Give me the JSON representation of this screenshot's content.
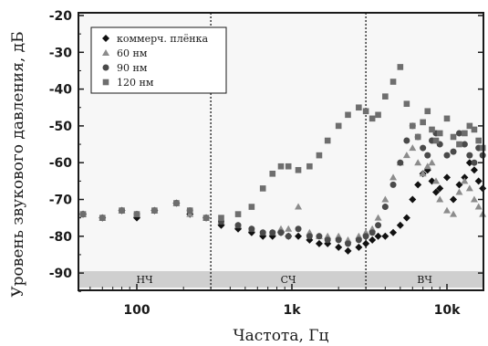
{
  "chart_data": {
    "type": "scatter",
    "title": "",
    "xlabel": "Частота, Гц",
    "ylabel": "Уровень звукового давления, дБ",
    "xscale": "log",
    "xlim": [
      40,
      20000
    ],
    "ylim": [
      -95,
      -20
    ],
    "xticks": [
      {
        "value": 100,
        "label": "100"
      },
      {
        "value": 1000,
        "label": "1k"
      },
      {
        "value": 10000,
        "label": "10k"
      }
    ],
    "yticks": [
      {
        "value": -20,
        "label": "-20"
      },
      {
        "value": -30,
        "label": "-30"
      },
      {
        "value": -40,
        "label": "-40"
      },
      {
        "value": -50,
        "label": "-50"
      },
      {
        "value": -60,
        "label": "-60"
      },
      {
        "value": -70,
        "label": "-70"
      },
      {
        "value": -80,
        "label": "-80"
      },
      {
        "value": -90,
        "label": "-90"
      }
    ],
    "grid": false,
    "legend_position": "top-left",
    "dividers": [
      300,
      3000
    ],
    "bands": [
      {
        "label": "НЧ",
        "from": 40,
        "to": 300
      },
      {
        "label": "СЧ",
        "from": 300,
        "to": 3000
      },
      {
        "label": "ВЧ",
        "from": 3000,
        "to": 20000
      }
    ],
    "series": [
      {
        "name": "коммерч. плёнка",
        "marker": "diamond",
        "color": "#111111",
        "x": [
          45,
          60,
          80,
          100,
          130,
          180,
          220,
          280,
          350,
          450,
          550,
          650,
          750,
          850,
          950,
          1100,
          1300,
          1500,
          1700,
          2000,
          2300,
          2700,
          3000,
          3300,
          3600,
          4000,
          4500,
          5000,
          5500,
          6000,
          6500,
          7000,
          7500,
          8000,
          8500,
          9000,
          10000,
          11000,
          12000,
          13000,
          14000,
          15000,
          16000,
          17000,
          18000,
          19000,
          20000
        ],
        "y": [
          -74,
          -75,
          -73,
          -75,
          -73,
          -71,
          -74,
          -75,
          -77,
          -78,
          -79,
          -80,
          -80,
          -79,
          -80,
          -80,
          -81,
          -82,
          -82,
          -83,
          -84,
          -83,
          -82,
          -81,
          -80,
          -80,
          -79,
          -77,
          -75,
          -70,
          -66,
          -63,
          -62,
          -65,
          -68,
          -67,
          -64,
          -70,
          -66,
          -64,
          -60,
          -62,
          -65,
          -67,
          -64,
          -66,
          -62
        ]
      },
      {
        "name": "60 нм",
        "marker": "triangle",
        "color": "#8c8c8c",
        "x": [
          45,
          60,
          80,
          100,
          130,
          180,
          220,
          280,
          350,
          450,
          550,
          650,
          750,
          850,
          950,
          1100,
          1300,
          1500,
          1700,
          2000,
          2300,
          2700,
          3000,
          3300,
          3600,
          4000,
          4500,
          5000,
          5500,
          6000,
          6500,
          7000,
          7500,
          8000,
          8500,
          9000,
          10000,
          11000,
          12000,
          13000,
          14000,
          15000,
          16000,
          17000,
          18000,
          19000,
          20000
        ],
        "y": [
          -74,
          -75,
          -73,
          -74,
          -73,
          -71,
          -74,
          -75,
          -76,
          -77,
          -78,
          -79,
          -79,
          -78,
          -78,
          -72,
          -79,
          -80,
          -80,
          -80,
          -81,
          -80,
          -79,
          -78,
          -75,
          -70,
          -64,
          -60,
          -58,
          -56,
          -60,
          -63,
          -61,
          -60,
          -65,
          -70,
          -73,
          -74,
          -68,
          -65,
          -67,
          -70,
          -72,
          -74,
          -70,
          -72,
          -68
        ]
      },
      {
        "name": "90 нм",
        "marker": "circle",
        "color": "#4a4a4a",
        "x": [
          45,
          60,
          80,
          100,
          130,
          180,
          220,
          280,
          350,
          450,
          550,
          650,
          750,
          850,
          950,
          1100,
          1300,
          1500,
          1700,
          2000,
          2300,
          2700,
          3000,
          3300,
          3600,
          4000,
          4500,
          5000,
          5500,
          6000,
          6500,
          7000,
          7500,
          8000,
          8500,
          9000,
          10000,
          11000,
          12000,
          13000,
          14000,
          15000,
          16000,
          17000,
          18000,
          19000,
          20000
        ],
        "y": [
          -74,
          -75,
          -73,
          -74,
          -73,
          -71,
          -73,
          -75,
          -76,
          -77,
          -78,
          -79,
          -79,
          -79,
          -80,
          -78,
          -80,
          -80,
          -81,
          -81,
          -82,
          -81,
          -80,
          -79,
          -77,
          -72,
          -66,
          -60,
          -54,
          -50,
          -53,
          -56,
          -58,
          -54,
          -52,
          -55,
          -58,
          -57,
          -52,
          -55,
          -58,
          -60,
          -56,
          -58,
          -61,
          -59,
          -57
        ]
      },
      {
        "name": "120 нм",
        "marker": "square",
        "color": "#6e6e6e",
        "x": [
          45,
          60,
          80,
          100,
          130,
          180,
          220,
          280,
          350,
          450,
          550,
          650,
          750,
          850,
          950,
          1100,
          1300,
          1500,
          1700,
          2000,
          2300,
          2700,
          3000,
          3300,
          3600,
          4000,
          4500,
          5000,
          5500,
          6000,
          6500,
          7000,
          7500,
          8000,
          8500,
          9000,
          10000,
          11000,
          12000,
          13000,
          14000,
          15000,
          16000,
          17000,
          18000,
          19000,
          20000
        ],
        "y": [
          -74,
          -75,
          -73,
          -74,
          -73,
          -71,
          -73,
          -75,
          -75,
          -74,
          -72,
          -67,
          -63,
          -61,
          -61,
          -62,
          -61,
          -58,
          -54,
          -50,
          -47,
          -45,
          -46,
          -48,
          -47,
          -42,
          -38,
          -34,
          -44,
          -50,
          -53,
          -49,
          -46,
          -51,
          -54,
          -52,
          -48,
          -53,
          -55,
          -52,
          -50,
          -51,
          -54,
          -56,
          -52,
          -53,
          -55
        ]
      }
    ]
  }
}
